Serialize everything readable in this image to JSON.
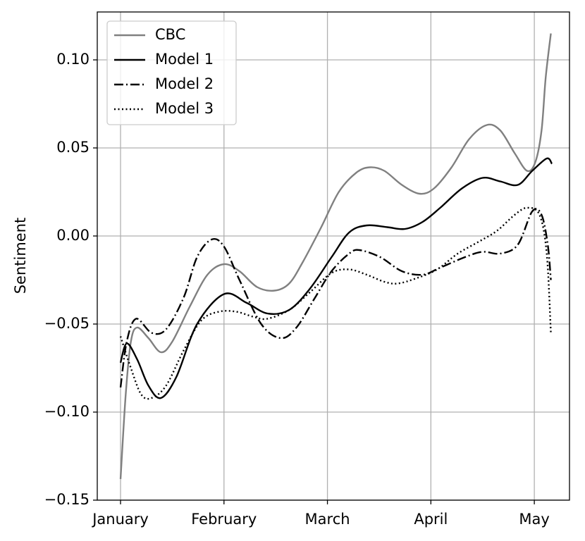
{
  "chart_data": {
    "type": "line",
    "y_label": "Sentiment",
    "xlim": [
      -0.225,
      4.34
    ],
    "xticks": [
      {
        "value": 0,
        "label": "January"
      },
      {
        "value": 1,
        "label": "February"
      },
      {
        "value": 2,
        "label": "March"
      },
      {
        "value": 3,
        "label": "April"
      },
      {
        "value": 4,
        "label": "May"
      }
    ],
    "ylim": [
      -0.15,
      0.1272
    ],
    "yticks": [
      {
        "value": -0.15,
        "label": "−0.15"
      },
      {
        "value": -0.1,
        "label": "−0.10"
      },
      {
        "value": -0.05,
        "label": "−0.05"
      },
      {
        "value": 0,
        "label": "0.00"
      },
      {
        "value": 0.05,
        "label": "0.05"
      },
      {
        "value": 0.1,
        "label": "0.10"
      }
    ],
    "grid": true,
    "legend": "upper-left",
    "series": [
      {
        "name": "CBC",
        "color": "#808080",
        "dash": "solid",
        "x": [
          0,
          0.05,
          0.1,
          0.16,
          0.27,
          0.39,
          0.5,
          0.67,
          0.84,
          1.0,
          1.15,
          1.32,
          1.49,
          1.63,
          1.76,
          1.94,
          2.11,
          2.28,
          2.41,
          2.55,
          2.72,
          2.89,
          3.03,
          3.2,
          3.37,
          3.54,
          3.67,
          3.81,
          3.93,
          4.01,
          4.07,
          4.11,
          4.16
        ],
        "values": [
          -0.138,
          -0.09,
          -0.06,
          -0.052,
          -0.058,
          -0.066,
          -0.06,
          -0.04,
          -0.022,
          -0.016,
          -0.02,
          -0.029,
          -0.031,
          -0.027,
          -0.015,
          0.005,
          0.025,
          0.036,
          0.039,
          0.037,
          0.029,
          0.024,
          0.027,
          0.039,
          0.055,
          0.063,
          0.06,
          0.047,
          0.037,
          0.042,
          0.06,
          0.09,
          0.115
        ]
      },
      {
        "name": "Model 1",
        "color": "#000000",
        "dash": "solid",
        "x": [
          0,
          0.06,
          0.16,
          0.27,
          0.39,
          0.54,
          0.74,
          1.0,
          1.22,
          1.42,
          1.63,
          1.83,
          2.04,
          2.21,
          2.38,
          2.58,
          2.75,
          2.92,
          3.09,
          3.3,
          3.5,
          3.67,
          3.84,
          3.98,
          4.12,
          4.17
        ],
        "values": [
          -0.072,
          -0.061,
          -0.07,
          -0.085,
          -0.092,
          -0.08,
          -0.05,
          -0.033,
          -0.038,
          -0.044,
          -0.042,
          -0.03,
          -0.012,
          0.002,
          0.006,
          0.005,
          0.004,
          0.008,
          0.016,
          0.027,
          0.033,
          0.031,
          0.029,
          0.037,
          0.044,
          0.041
        ]
      },
      {
        "name": "Model 2",
        "color": "#000000",
        "dash": "dashdot",
        "x": [
          0,
          0.06,
          0.15,
          0.3,
          0.44,
          0.61,
          0.74,
          0.88,
          1.0,
          1.15,
          1.36,
          1.55,
          1.7,
          1.87,
          2.04,
          2.21,
          2.31,
          2.51,
          2.72,
          2.92,
          3.09,
          3.33,
          3.5,
          3.67,
          3.84,
          3.98,
          4.07,
          4.13,
          4.16
        ],
        "values": [
          -0.086,
          -0.06,
          -0.047,
          -0.055,
          -0.053,
          -0.035,
          -0.012,
          -0.002,
          -0.006,
          -0.025,
          -0.05,
          -0.058,
          -0.052,
          -0.036,
          -0.02,
          -0.01,
          -0.008,
          -0.012,
          -0.02,
          -0.022,
          -0.018,
          -0.012,
          -0.009,
          -0.01,
          -0.005,
          0.014,
          0.012,
          -0.005,
          -0.025
        ]
      },
      {
        "name": "Model 3",
        "color": "#000000",
        "dash": "dotted",
        "x": [
          0,
          0.1,
          0.2,
          0.3,
          0.44,
          0.61,
          0.78,
          0.95,
          1.12,
          1.29,
          1.42,
          1.63,
          1.83,
          2.04,
          2.21,
          2.38,
          2.55,
          2.68,
          2.86,
          3.06,
          3.26,
          3.47,
          3.64,
          3.81,
          3.93,
          4.05,
          4.12,
          4.16
        ],
        "values": [
          -0.057,
          -0.075,
          -0.09,
          -0.092,
          -0.085,
          -0.065,
          -0.048,
          -0.043,
          -0.043,
          -0.046,
          -0.047,
          -0.042,
          -0.032,
          -0.021,
          -0.019,
          -0.022,
          -0.026,
          -0.027,
          -0.024,
          -0.019,
          -0.01,
          -0.003,
          0.003,
          0.012,
          0.016,
          0.012,
          -0.01,
          -0.055
        ]
      }
    ]
  }
}
